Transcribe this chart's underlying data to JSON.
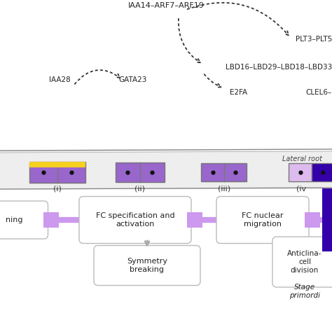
{
  "bg_color": "#ffffff",
  "panel_bg": "#eeeeee",
  "purple_cell": "#9966cc",
  "purple_light": "#cc99dd",
  "purple_connector": "#cc99ee",
  "yellow": "#f5d020",
  "dark_purple": "#3300aa",
  "top_labels": {
    "IAA14": "IAA14–ARF7–ARF19",
    "LBD": "LBD16–LBD29–LBD18–LBD33",
    "PLT": "PLT3–PLT5",
    "E2FA": "E2FA",
    "IAA28": "IAA28",
    "GATA23": "GATA23",
    "CLEL6": "CLEL6–"
  },
  "stage_labels": [
    "(i)",
    "(ii)",
    "(iii)",
    "(iv"
  ],
  "symmetry_label": "Symmetry\nbreaking",
  "lateral_root_label": "Lateral root"
}
